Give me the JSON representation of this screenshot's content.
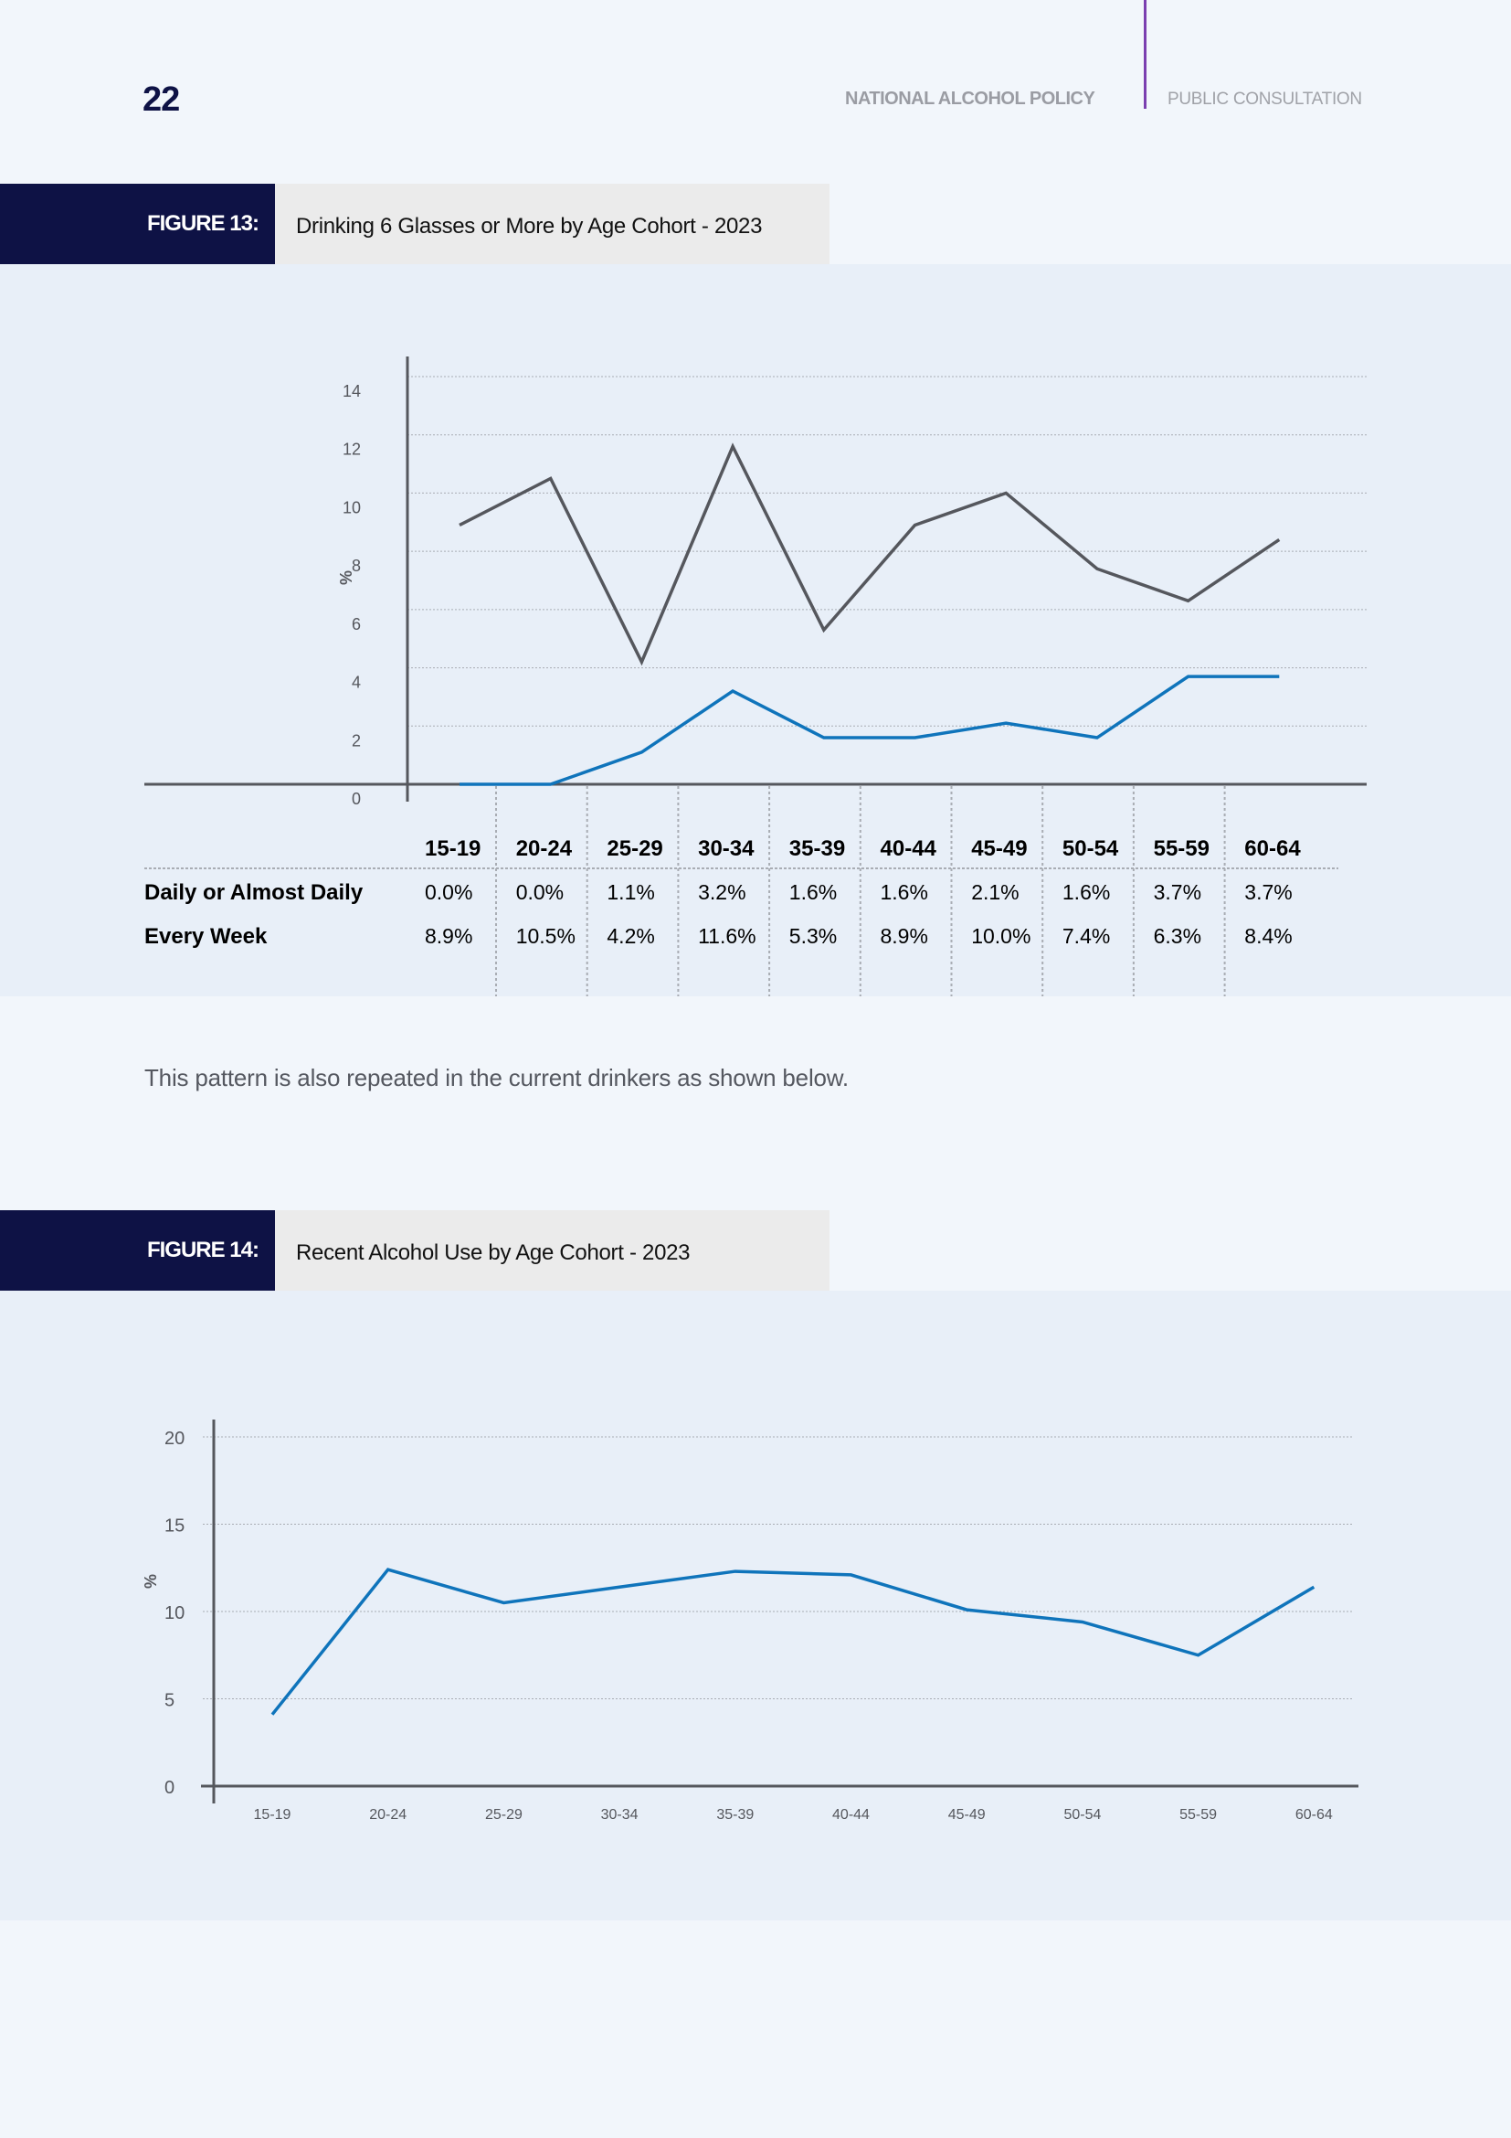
{
  "header": {
    "page_number": "22",
    "title": "NATIONAL ALCOHOL POLICY",
    "subtitle": "PUBLIC CONSULTATION"
  },
  "figure13": {
    "label": "FIGURE 13:",
    "title": "Drinking 6 Glasses or More by Age Cohort - 2023"
  },
  "body": {
    "paragraph": "This pattern is also repeated in the current drinkers as shown below."
  },
  "figure14": {
    "label": "FIGURE 14:",
    "title": "Recent Alcohol Use by Age Cohort - 2023"
  },
  "colors": {
    "navy": "#0e1245",
    "blue_series": "#0f74bb",
    "grey_series": "#55575d",
    "accent_purple": "#7b3fb0"
  },
  "chart_data": [
    {
      "type": "line",
      "title": "Drinking 6 Glasses or More by Age Cohort - 2023",
      "xlabel": "",
      "ylabel": "%",
      "ylim": [
        0,
        14
      ],
      "yticks": [
        "0",
        "2",
        "4",
        "6",
        "8",
        "10",
        "12",
        "14"
      ],
      "grid": true,
      "categories": [
        "15-19",
        "20-24",
        "25-29",
        "30-34",
        "35-39",
        "40-44",
        "45-49",
        "50-54",
        "55-59",
        "60-64"
      ],
      "series": [
        {
          "name": "Daily or Almost Daily",
          "color": "#0f74bb",
          "values": [
            0.0,
            0.0,
            1.1,
            3.2,
            1.6,
            1.6,
            2.1,
            1.6,
            3.7,
            3.7
          ],
          "labels": [
            "0.0%",
            "0.0%",
            "1.1%",
            "3.2%",
            "1.6%",
            "1.6%",
            "2.1%",
            "1.6%",
            "3.7%",
            "3.7%"
          ]
        },
        {
          "name": "Every Week",
          "color": "#55575d",
          "values": [
            8.9,
            10.5,
            4.2,
            11.6,
            5.3,
            8.9,
            10.0,
            7.4,
            6.3,
            8.4
          ],
          "labels": [
            "8.9%",
            "10.5%",
            "4.2%",
            "11.6%",
            "5.3%",
            "8.9%",
            "10.0%",
            "7.4%",
            "6.3%",
            "8.4%"
          ]
        }
      ],
      "legend": "data-table-below"
    },
    {
      "type": "line",
      "title": "Recent Alcohol Use by Age Cohort - 2023",
      "xlabel": "",
      "ylabel": "%",
      "ylim": [
        0,
        20
      ],
      "yticks": [
        "0",
        "5",
        "10",
        "15",
        "20"
      ],
      "grid": true,
      "categories": [
        "15-19",
        "20-24",
        "25-29",
        "30-34",
        "35-39",
        "40-44",
        "45-49",
        "50-54",
        "55-59",
        "60-64"
      ],
      "series": [
        {
          "name": "Recent Alcohol Use",
          "color": "#0f74bb",
          "values": [
            4.1,
            12.4,
            10.5,
            11.4,
            12.3,
            12.1,
            10.1,
            9.4,
            7.5,
            11.4
          ]
        }
      ],
      "legend": "none"
    }
  ]
}
